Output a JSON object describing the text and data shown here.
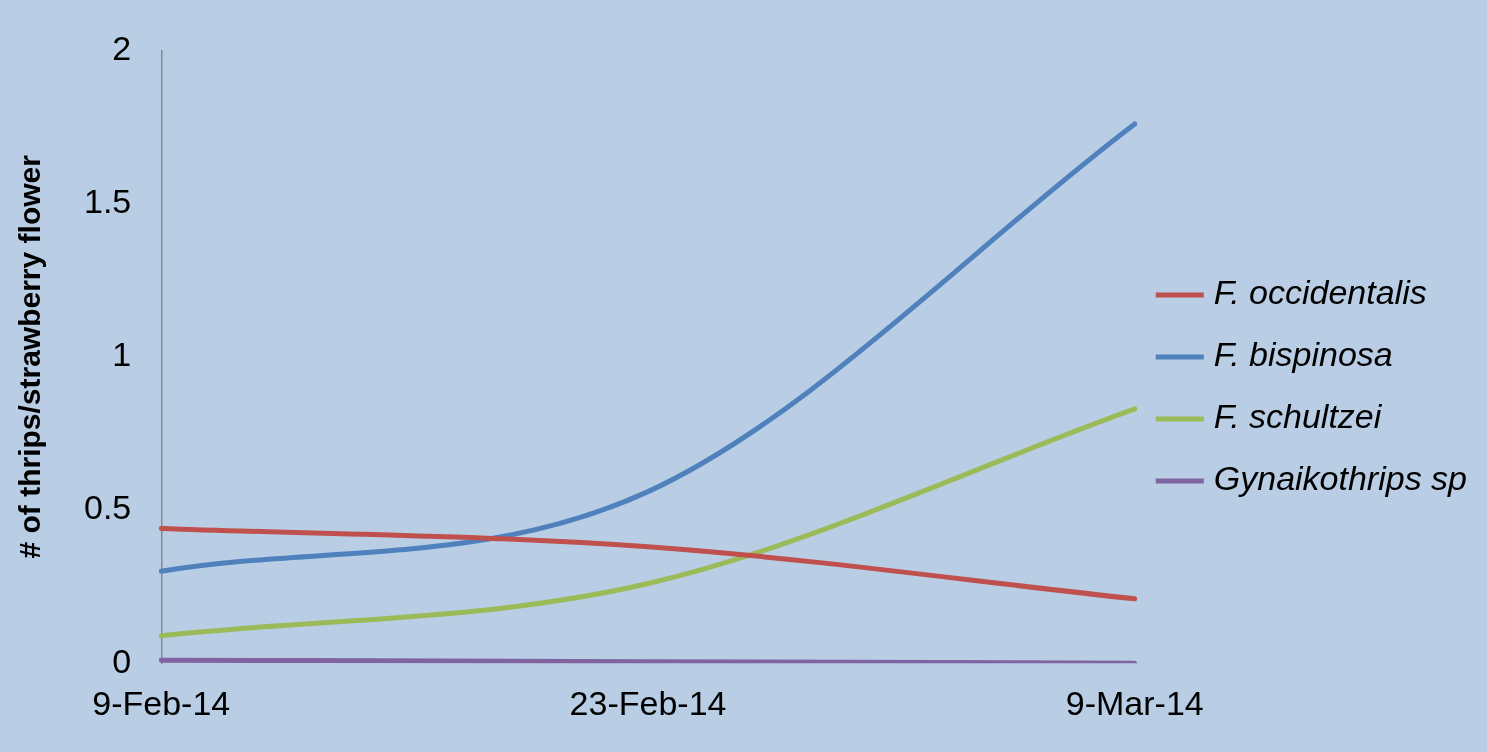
{
  "chart_data": {
    "type": "line",
    "ylabel": "# of thrips/strawberry flower",
    "categories": [
      "9-Feb-14",
      "23-Feb-14",
      "9-Mar-14"
    ],
    "series": [
      {
        "name": "F. occidentalis",
        "color": "#c0504d",
        "values": [
          0.44,
          0.38,
          0.21
        ]
      },
      {
        "name": "F. bispinosa",
        "color": "#4f81bd",
        "values": [
          0.3,
          0.56,
          1.76
        ]
      },
      {
        "name": "F. schultzei",
        "color": "#9bbb59",
        "values": [
          0.09,
          0.26,
          0.83
        ]
      },
      {
        "name": "Gynaikothrips sp",
        "color": "#8064a2",
        "values": [
          0.01,
          0.005,
          0
        ]
      }
    ],
    "ylim": [
      0,
      2
    ],
    "yticks": [
      0,
      0.5,
      1,
      1.5,
      2
    ],
    "grid": false,
    "legend": "right",
    "marker": "none",
    "line_style": "solid"
  }
}
